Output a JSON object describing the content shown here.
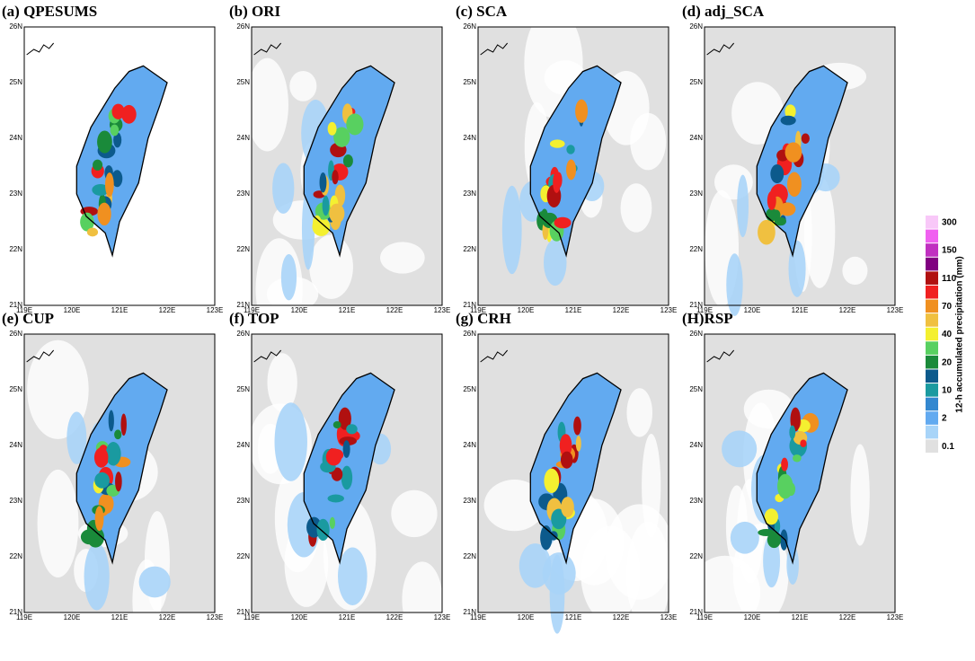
{
  "panels": [
    {
      "title": "(a) QPESUMS"
    },
    {
      "title": "(b) ORI"
    },
    {
      "title": "(c) SCA"
    },
    {
      "title": "(d) adj_SCA"
    },
    {
      "title": "(e) CUP"
    },
    {
      "title": "(f) TOP"
    },
    {
      "title": "(g) CRH"
    },
    {
      "title": "(H)RSP"
    }
  ],
  "lat_labels": [
    "26N",
    "25N",
    "24N",
    "23N",
    "22N",
    "21N"
  ],
  "lon_labels": [
    "119E",
    "120E",
    "121E",
    "122E",
    "123E"
  ],
  "colorbar": {
    "title": "12-h accumulated precipitation (mm)",
    "labels": [
      "0.1",
      "2",
      "10",
      "20",
      "40",
      "70",
      "110",
      "150",
      "300"
    ],
    "colors": [
      "#e0e0e0",
      "#a8d4f8",
      "#62aaf0",
      "#3388d0",
      "#1a9aa0",
      "#0c5a8c",
      "#1a8a3a",
      "#58d060",
      "#f4f030",
      "#f0c040",
      "#f09020",
      "#f02020",
      "#b01010",
      "#800080",
      "#c030c0",
      "#f060f0",
      "#f8c8f8"
    ]
  }
}
